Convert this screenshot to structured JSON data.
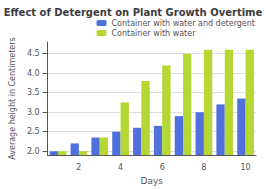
{
  "chart_data": {
    "type": "bar",
    "title": "Effect of Detergent on Plant Growth Overtime",
    "xlabel": "Days",
    "ylabel": "Average height in Centimeters",
    "categories": [
      null,
      "2",
      null,
      "4",
      null,
      "6",
      null,
      "8",
      null,
      "10"
    ],
    "series": [
      {
        "name": "Container with water and detergent",
        "values": [
          2.0,
          2.2,
          2.35,
          2.5,
          2.6,
          2.65,
          2.9,
          3.0,
          3.2,
          3.35
        ]
      },
      {
        "name": "Container with water",
        "values": [
          2.0,
          2.0,
          2.35,
          3.25,
          3.8,
          4.2,
          4.5,
          4.6,
          4.6,
          4.6
        ]
      }
    ],
    "ylim": [
      1.9,
      4.8
    ],
    "yticks": [
      {
        "value": 2.0,
        "label": "2.0"
      },
      2.5,
      {
        "value": 3.0,
        "label": "3.0"
      },
      3.5,
      {
        "value": 4.0,
        "label": "4.0"
      },
      4.5
    ],
    "grid": true,
    "legend": "upper right"
  }
}
